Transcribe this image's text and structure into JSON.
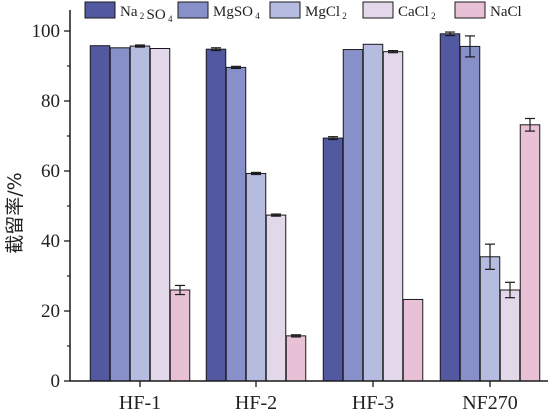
{
  "chart_data": {
    "type": "bar",
    "categories": [
      "HF-1",
      "HF-2",
      "HF-3",
      "NF270"
    ],
    "series": [
      {
        "name": "Na2SO4",
        "name_base": [
          "Na",
          "SO"
        ],
        "name_subs": [
          "2",
          "4"
        ],
        "color": "#5259a0",
        "values": [
          95.8,
          94.8,
          69.4,
          99.2
        ],
        "errors": [
          0,
          0.4,
          0.4,
          0.5
        ]
      },
      {
        "name": "MgSO4",
        "name_base": [
          "MgSO"
        ],
        "name_subs": [
          "4"
        ],
        "color": "#8890c9",
        "values": [
          95.2,
          89.6,
          94.7,
          95.6
        ],
        "errors": [
          0,
          0.3,
          0,
          3.0
        ]
      },
      {
        "name": "MgCl2",
        "name_base": [
          "MgCl"
        ],
        "name_subs": [
          "2"
        ],
        "color": "#b6bbe0",
        "values": [
          95.7,
          59.3,
          96.2,
          35.5
        ],
        "errors": [
          0.3,
          0.3,
          0,
          3.6
        ]
      },
      {
        "name": "CaCl2",
        "name_base": [
          "CaCl"
        ],
        "name_subs": [
          "2"
        ],
        "color": "#e3d7ea",
        "values": [
          95.0,
          47.4,
          94.1,
          26.0
        ],
        "errors": [
          0,
          0.3,
          0.3,
          2.2
        ]
      },
      {
        "name": "NaCl",
        "name_base": [
          "NaCl"
        ],
        "name_subs": [],
        "color": "#e8c1d6",
        "values": [
          26.0,
          12.9,
          23.3,
          73.2
        ],
        "errors": [
          1.3,
          0.3,
          0,
          1.8
        ]
      }
    ],
    "title": "",
    "xlabel": "",
    "ylabel": "截留率/%",
    "ylim": [
      0,
      106
    ],
    "yticks": [
      0,
      20,
      40,
      60,
      80,
      100
    ],
    "grid": false,
    "legend_position": "top"
  }
}
